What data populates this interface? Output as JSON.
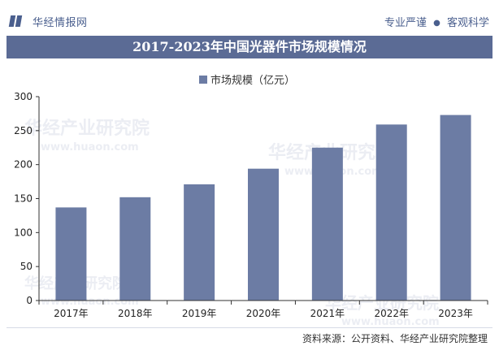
{
  "header": {
    "brand": "华经情报网",
    "tagline_left": "专业严谨",
    "tagline_sep": "●",
    "tagline_right": "客观科学"
  },
  "title": "2017-2023年中国光器件市场规模情况",
  "footer": {
    "source": "资料来源：公开资料、华经产业研究院整理"
  },
  "watermark": {
    "text": "华经产业研究院",
    "url": "www.huaon.com"
  },
  "colors": {
    "bar": "#6c7ca4",
    "title_bg": "#5b6b95",
    "brand": "#4a5f8e"
  },
  "chart_data": {
    "type": "bar",
    "categories": [
      "2017年",
      "2018年",
      "2019年",
      "2020年",
      "2021年",
      "2022年",
      "2023年"
    ],
    "series": [
      {
        "name": "市场规模（亿元）",
        "values": [
          137,
          152,
          171,
          194,
          225,
          259,
          273
        ]
      }
    ],
    "ylim": [
      0,
      300
    ],
    "yticks": [
      0,
      50,
      100,
      150,
      200,
      250,
      300
    ],
    "legend_position": "top-center",
    "grid": false
  }
}
